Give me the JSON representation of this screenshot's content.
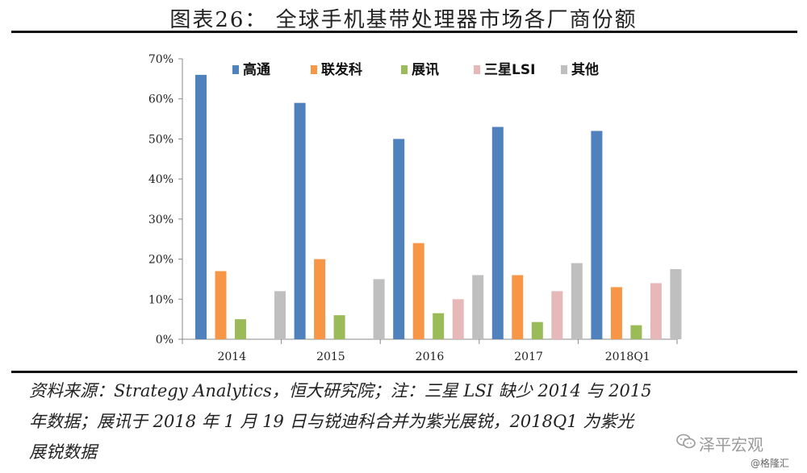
{
  "title": "图表26： 全球手机基带处理器市场各厂商份额",
  "notes": {
    "line1": "资料来源：Strategy Analytics，恒大研究院；注：三星 LSI 缺少 2014 与 2015",
    "line2": "年数据；展讯于 2018 年 1 月 19 日与锐迪科合并为紫光展锐，2018Q1 为紫光",
    "line3": "展锐数据"
  },
  "watermark": {
    "brand": "泽平宏观",
    "site": "@格隆汇",
    "icon": "wechat-icon"
  },
  "colors": {
    "qualcomm": "#4f81bd",
    "mediatek": "#f79646",
    "spreadtrum": "#9bbb59",
    "samsung": "#e6b9b8",
    "other": "#bfbfbf"
  },
  "chart_data": {
    "type": "bar",
    "title": "",
    "xlabel": "",
    "ylabel": "",
    "categories": [
      "2014",
      "2015",
      "2016",
      "2017",
      "2018Q1"
    ],
    "ylim": [
      0,
      70
    ],
    "yticks": [
      "0%",
      "10%",
      "20%",
      "30%",
      "40%",
      "50%",
      "60%",
      "70%"
    ],
    "legend_position": "top",
    "grid": false,
    "series": [
      {
        "name": "高通",
        "color": "#4f81bd",
        "values": [
          66,
          59,
          50,
          53,
          52
        ]
      },
      {
        "name": "联发科",
        "color": "#f79646",
        "values": [
          17,
          20,
          24,
          16,
          13
        ]
      },
      {
        "name": "展讯",
        "color": "#9bbb59",
        "values": [
          5,
          6,
          6.5,
          4.3,
          3.5
        ]
      },
      {
        "name": "三星LSI",
        "color": "#e6b9b8",
        "values": [
          null,
          null,
          10,
          12,
          14
        ]
      },
      {
        "name": "其他",
        "color": "#bfbfbf",
        "values": [
          12,
          15,
          16,
          19,
          17.5
        ]
      }
    ]
  }
}
